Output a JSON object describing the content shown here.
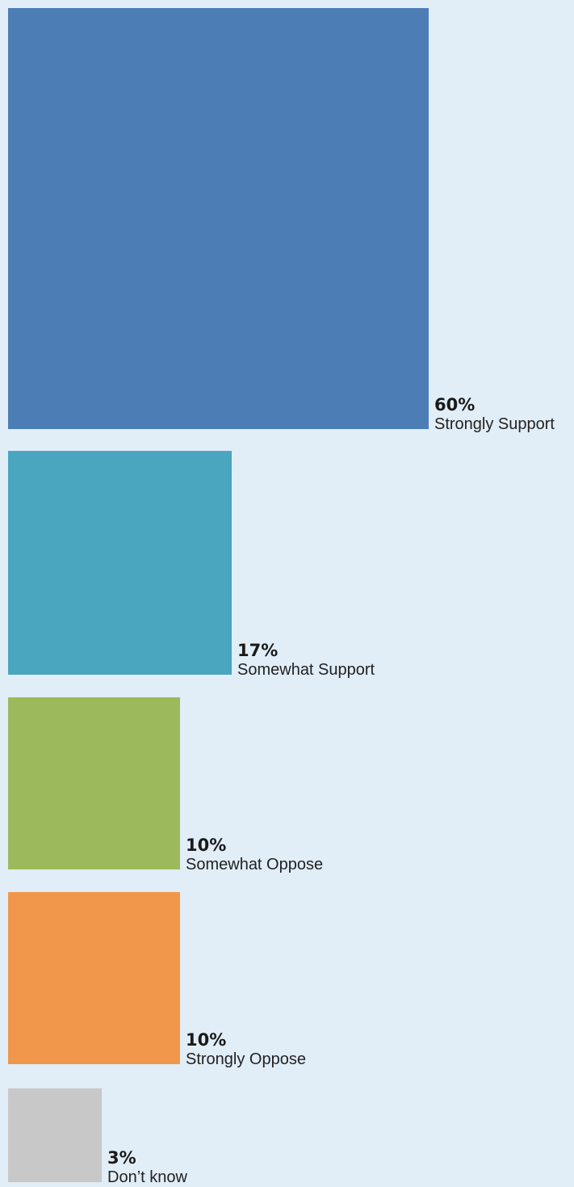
{
  "chart_data": {
    "type": "area-squares",
    "unit": "%",
    "items": [
      {
        "category": "Strongly Support",
        "value": 60,
        "label": "60%",
        "color": "#4c7db5"
      },
      {
        "category": "Somewhat Support",
        "value": 17,
        "label": "17%",
        "color": "#4aa6be"
      },
      {
        "category": "Somewhat Oppose",
        "value": 10,
        "label": "10%",
        "color": "#9cba5b"
      },
      {
        "category": "Strongly Oppose",
        "value": 10,
        "label": "10%",
        "color": "#f0974b"
      },
      {
        "category": "Don’t know",
        "value": 3,
        "label": "3%",
        "color": "#c8c8c8"
      }
    ]
  },
  "background_color": "#e1edf7"
}
